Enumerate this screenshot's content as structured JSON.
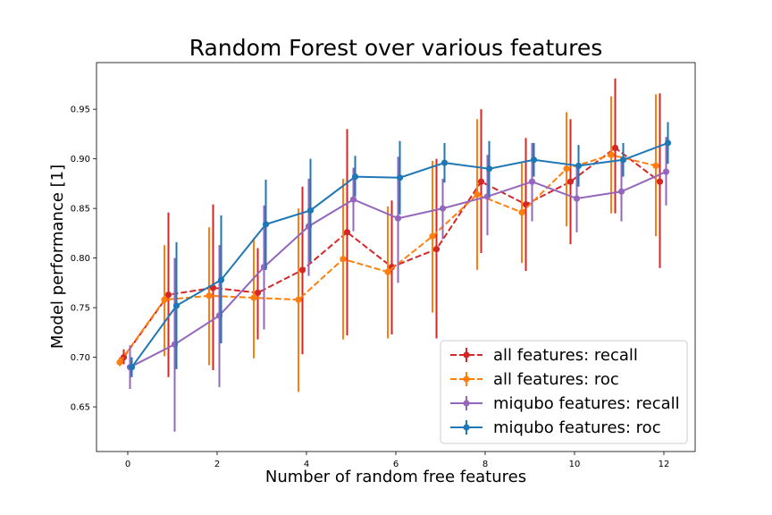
{
  "chart_data": {
    "type": "line",
    "title": "Random Forest over various features",
    "xlabel": "Number of random free features",
    "ylabel": "Model performance [1]",
    "xlim": [
      -0.7,
      12.7
    ],
    "ylim": [
      0.605,
      0.997
    ],
    "xticks": [
      "0",
      "2",
      "4",
      "6",
      "8",
      "10",
      "12"
    ],
    "yticks": [
      "0.65",
      "0.70",
      "0.75",
      "0.80",
      "0.85",
      "0.90",
      "0.95"
    ],
    "grid": false,
    "legend_position": "lower-right",
    "series": [
      {
        "name": "all features: recall",
        "color": "#d62728",
        "linestyle": "dashed",
        "x_offset": -0.09,
        "x": [
          0,
          1,
          2,
          3,
          4,
          5,
          6,
          7,
          8,
          9,
          10,
          11,
          12
        ],
        "y": [
          0.7,
          0.763,
          0.77,
          0.765,
          0.788,
          0.826,
          0.791,
          0.809,
          0.877,
          0.854,
          0.877,
          0.911,
          0.877
        ],
        "err_low": [
          0.693,
          0.68,
          0.687,
          0.718,
          0.703,
          0.722,
          0.723,
          0.719,
          0.805,
          0.787,
          0.814,
          0.845,
          0.79
        ],
        "err_high": [
          0.708,
          0.846,
          0.854,
          0.81,
          0.872,
          0.93,
          0.858,
          0.9,
          0.95,
          0.921,
          0.94,
          0.981,
          0.966
        ]
      },
      {
        "name": "all features: roc",
        "color": "#ff7f0e",
        "linestyle": "dashed",
        "x_offset": -0.18,
        "x": [
          0,
          1,
          2,
          3,
          4,
          5,
          6,
          7,
          8,
          9,
          10,
          11,
          12
        ],
        "y": [
          0.695,
          0.758,
          0.762,
          0.76,
          0.758,
          0.799,
          0.786,
          0.822,
          0.864,
          0.846,
          0.89,
          0.904,
          0.893
        ],
        "err_low": [
          0.691,
          0.701,
          0.692,
          0.699,
          0.665,
          0.718,
          0.719,
          0.745,
          0.788,
          0.795,
          0.832,
          0.845,
          0.822
        ],
        "err_high": [
          0.7,
          0.813,
          0.831,
          0.82,
          0.85,
          0.88,
          0.852,
          0.898,
          0.94,
          0.896,
          0.947,
          0.963,
          0.965
        ]
      },
      {
        "name": "miqubo features: recall",
        "color": "#9467bd",
        "linestyle": "solid",
        "x_offset": 0.05,
        "x": [
          0,
          1,
          2,
          3,
          4,
          5,
          6,
          7,
          8,
          9,
          10,
          11,
          12
        ],
        "y": [
          0.69,
          0.713,
          0.742,
          0.791,
          0.832,
          0.859,
          0.84,
          0.85,
          0.862,
          0.877,
          0.86,
          0.867,
          0.887
        ],
        "err_low": [
          0.668,
          0.625,
          0.67,
          0.728,
          0.782,
          0.827,
          0.775,
          0.819,
          0.823,
          0.837,
          0.826,
          0.837,
          0.853
        ],
        "err_high": [
          0.712,
          0.8,
          0.813,
          0.853,
          0.88,
          0.891,
          0.902,
          0.88,
          0.904,
          0.916,
          0.893,
          0.897,
          0.922
        ]
      },
      {
        "name": "miqubo features: roc",
        "color": "#1f77b4",
        "linestyle": "solid",
        "x_offset": 0.09,
        "x": [
          0,
          1,
          2,
          3,
          4,
          5,
          6,
          7,
          8,
          9,
          10,
          11,
          12
        ],
        "y": [
          0.69,
          0.752,
          0.778,
          0.834,
          0.848,
          0.882,
          0.881,
          0.896,
          0.89,
          0.899,
          0.893,
          0.899,
          0.916
        ],
        "err_low": [
          0.68,
          0.688,
          0.714,
          0.788,
          0.796,
          0.862,
          0.844,
          0.876,
          0.862,
          0.882,
          0.872,
          0.882,
          0.895
        ],
        "err_high": [
          0.7,
          0.816,
          0.843,
          0.879,
          0.9,
          0.903,
          0.918,
          0.916,
          0.918,
          0.916,
          0.914,
          0.916,
          0.937
        ]
      }
    ]
  }
}
